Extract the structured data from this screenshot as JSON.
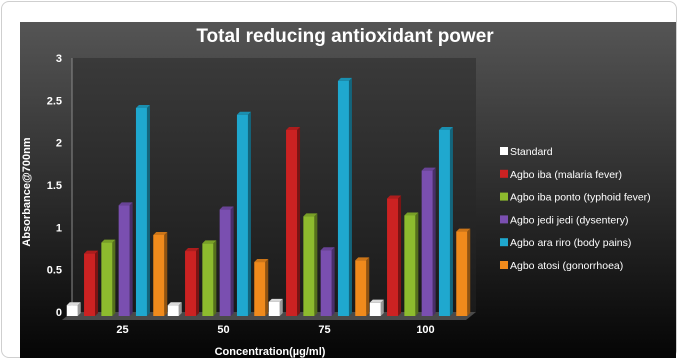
{
  "chart_data": {
    "type": "bar",
    "title": "Total reducing antioxidant power",
    "xlabel": "Concentration(µg/ml)",
    "ylabel": "Absorbance@700nm",
    "ylim": [
      0,
      3
    ],
    "yticks": [
      "0",
      "0.5",
      "1",
      "1.5",
      "2",
      "2.5",
      "3"
    ],
    "categories": [
      "25",
      "50",
      "75",
      "100"
    ],
    "grid": false,
    "legend_position": "right",
    "series": [
      {
        "name": "Standard",
        "color": "#ffffff",
        "values": [
          0.08,
          0.08,
          0.12,
          0.11
        ]
      },
      {
        "name": "Agbo iba (malaria fever)",
        "color": "#cc2222",
        "values": [
          0.69,
          0.72,
          2.15,
          1.34
        ]
      },
      {
        "name": "Agbo iba ponto (typhoid fever)",
        "color": "#8dbb2e",
        "values": [
          0.82,
          0.81,
          1.13,
          1.14
        ]
      },
      {
        "name": "Agbo jedi jedi (dysentery)",
        "color": "#7a4fb0",
        "values": [
          1.26,
          1.21,
          0.73,
          1.67
        ]
      },
      {
        "name": "Agbo ara riro (body pains)",
        "color": "#1fa8cf",
        "values": [
          2.41,
          2.33,
          2.73,
          2.15
        ]
      },
      {
        "name": "Agbo atosi (gonorrhoea)",
        "color": "#f08a1c",
        "values": [
          0.91,
          0.59,
          0.61,
          0.95
        ]
      }
    ]
  }
}
